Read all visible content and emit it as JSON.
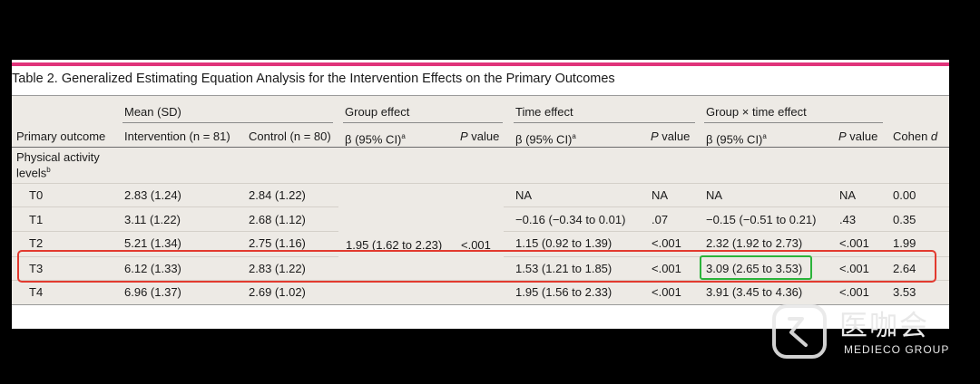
{
  "title": "Table 2. Generalized Estimating Equation Analysis for the Intervention Effects on the Primary Outcomes",
  "header": {
    "group_mean": "Mean (SD)",
    "group_group_effect": "Group effect",
    "group_time_effect": "Time effect",
    "group_interaction": "Group × time effect",
    "primary_outcome": "Primary outcome",
    "intervention": "Intervention (n = 81)",
    "control": "Control (n = 80)",
    "beta_ci": "β (95% CI)",
    "beta_sup": "a",
    "p_italic": "P",
    "p_rest": " value",
    "cohen": "Cohen ",
    "cohen_d": "d"
  },
  "section": {
    "label_line1": "Physical activity",
    "label_line2": "levels",
    "label_sup": "b"
  },
  "group_effect": {
    "beta": "1.95 (1.62 to 2.23)",
    "p": "<.001"
  },
  "rows": [
    {
      "label": "T0",
      "intervention": "2.83 (1.24)",
      "control": "2.84 (1.22)",
      "time_beta": "NA",
      "time_p": "NA",
      "gt_beta": "NA",
      "gt_p": "NA",
      "cohen": "0.00"
    },
    {
      "label": "T1",
      "intervention": "3.11 (1.22)",
      "control": "2.68 (1.12)",
      "time_beta": "−0.16 (−0.34 to 0.01)",
      "time_p": ".07",
      "gt_beta": "−0.15 (−0.51 to 0.21)",
      "gt_p": ".43",
      "cohen": "0.35"
    },
    {
      "label": "T2",
      "intervention": "5.21 (1.34)",
      "control": "2.75 (1.16)",
      "time_beta": "1.15 (0.92 to 1.39)",
      "time_p": "<.001",
      "gt_beta": "2.32 (1.92 to 2.73)",
      "gt_p": "<.001",
      "cohen": "1.99"
    },
    {
      "label": "T3",
      "intervention": "6.12 (1.33)",
      "control": "2.83 (1.22)",
      "time_beta": "1.53 (1.21 to 1.85)",
      "time_p": "<.001",
      "gt_beta": "3.09 (2.65 to 3.53)",
      "gt_p": "<.001",
      "cohen": "2.64"
    },
    {
      "label": "T4",
      "intervention": "6.96 (1.37)",
      "control": "2.69 (1.02)",
      "time_beta": "1.95 (1.56 to 2.33)",
      "time_p": "<.001",
      "gt_beta": "3.91 (3.45 to 4.36)",
      "gt_p": "<.001",
      "cohen": "3.53"
    }
  ],
  "watermark": {
    "cn": "医咖会",
    "en": "MEDIECO GROUP"
  },
  "colors": {
    "accent": "#e0337a",
    "highlight_row": "#e23a2f",
    "highlight_cell": "#2bb33a",
    "table_bg": "#edeae5"
  }
}
